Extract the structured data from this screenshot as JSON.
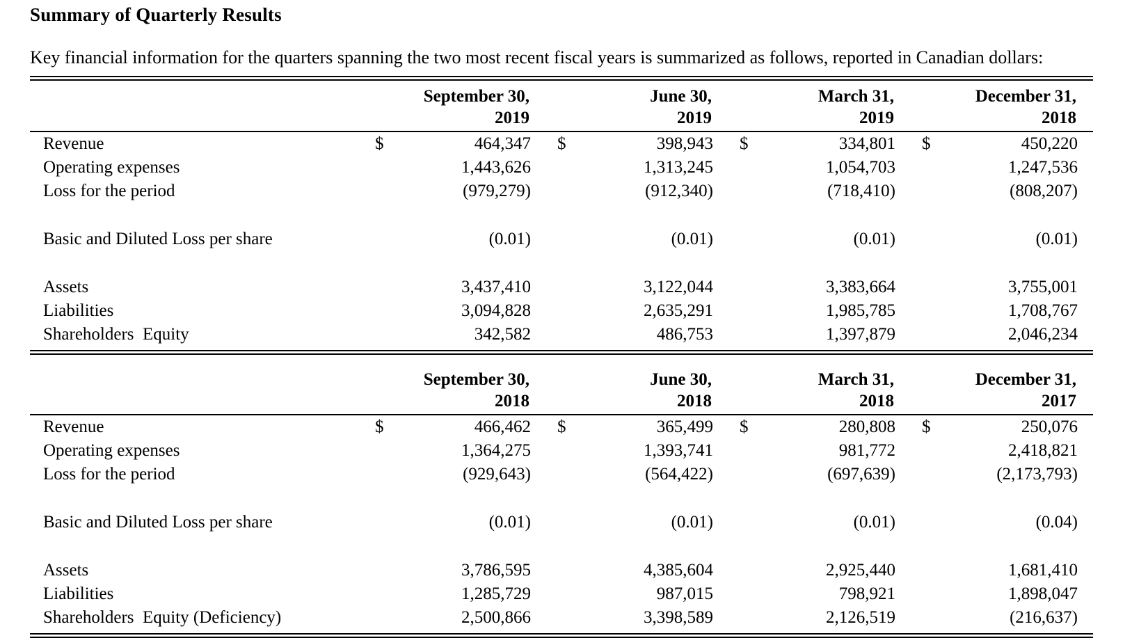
{
  "page": {
    "title": "Summary of Quarterly Results",
    "intro": "Key financial information for the quarters spanning the two most recent fiscal years is summarized as follows, reported in Canadian dollars:"
  },
  "tables": [
    {
      "name": "fiscal-2019-quarters",
      "columns": [
        {
          "line1": "September 30,",
          "line2": "2019"
        },
        {
          "line1": "June 30,",
          "line2": "2019"
        },
        {
          "line1": "March 31,",
          "line2": "2019"
        },
        {
          "line1": "December 31,",
          "line2": "2018"
        }
      ],
      "rows": [
        {
          "label": "Revenue",
          "dollar": "$",
          "values": [
            "464,347",
            "398,943",
            "334,801",
            "450,220"
          ]
        },
        {
          "label": "Operating expenses",
          "values": [
            "1,443,626",
            "1,313,245",
            "1,054,703",
            "1,247,536"
          ]
        },
        {
          "label": "Loss for the period",
          "values": [
            "(979,279)",
            "(912,340)",
            "(718,410)",
            "(808,207)"
          ]
        },
        {
          "label": "Basic and Diluted Loss per share",
          "values": [
            "(0.01)",
            "(0.01)",
            "(0.01)",
            "(0.01)"
          ]
        },
        {
          "label": "Assets",
          "values": [
            "3,437,410",
            "3,122,044",
            "3,383,664",
            "3,755,001"
          ]
        },
        {
          "label": "Liabilities",
          "values": [
            "3,094,828",
            "2,635,291",
            "1,985,785",
            "1,708,767"
          ]
        },
        {
          "label": "Shareholders  Equity",
          "values": [
            "342,582",
            "486,753",
            "1,397,879",
            "2,046,234"
          ]
        }
      ]
    },
    {
      "name": "fiscal-2018-quarters",
      "columns": [
        {
          "line1": "September 30,",
          "line2": "2018"
        },
        {
          "line1": "June 30,",
          "line2": "2018"
        },
        {
          "line1": "March 31,",
          "line2": "2018"
        },
        {
          "line1": "December 31,",
          "line2": "2017"
        }
      ],
      "rows": [
        {
          "label": "Revenue",
          "dollar": "$",
          "values": [
            "466,462",
            "365,499",
            "280,808",
            "250,076"
          ]
        },
        {
          "label": "Operating expenses",
          "values": [
            "1,364,275",
            "1,393,741",
            "981,772",
            "2,418,821"
          ]
        },
        {
          "label": "Loss for the period",
          "values": [
            "(929,643)",
            "(564,422)",
            "(697,639)",
            "(2,173,793)"
          ]
        },
        {
          "label": "Basic and Diluted Loss per share",
          "values": [
            "(0.01)",
            "(0.01)",
            "(0.01)",
            "(0.04)"
          ]
        },
        {
          "label": "Assets",
          "values": [
            "3,786,595",
            "4,385,604",
            "2,925,440",
            "1,681,410"
          ]
        },
        {
          "label": "Liabilities",
          "values": [
            "1,285,729",
            "987,015",
            "798,921",
            "1,898,047"
          ]
        },
        {
          "label": "Shareholders  Equity (Deficiency)",
          "values": [
            "2,500,866",
            "3,398,589",
            "2,126,519",
            "(216,637)"
          ]
        }
      ]
    }
  ]
}
